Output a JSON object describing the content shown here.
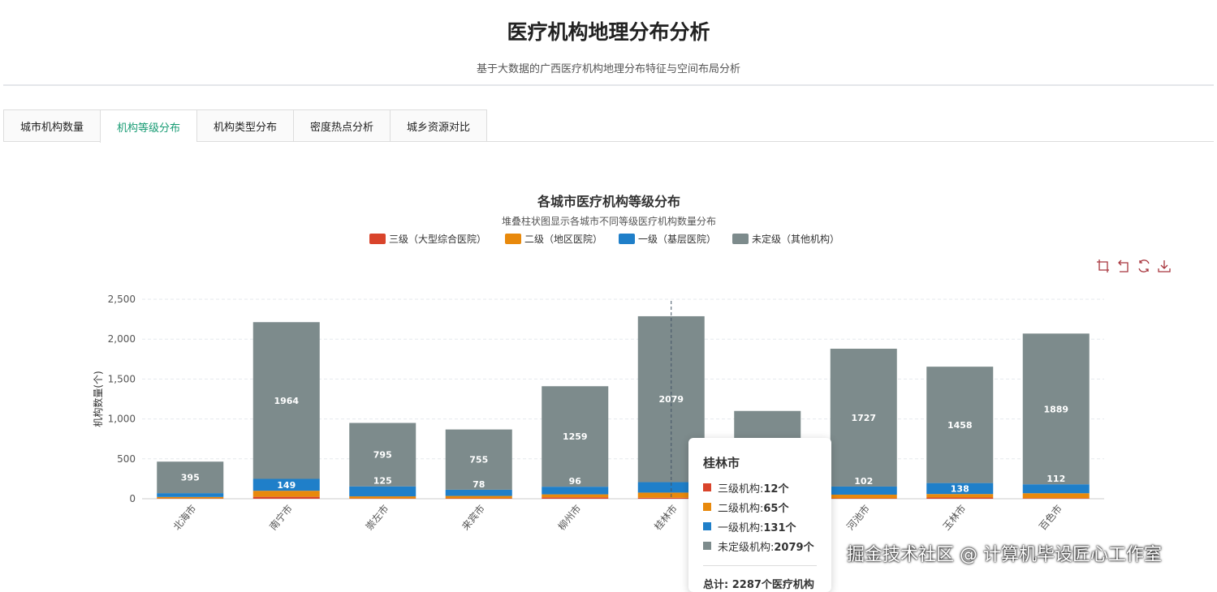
{
  "header": {
    "title": "医疗机构地理分布分析",
    "subtitle": "基于大数据的广西医疗机构地理分布特征与空间布局分析"
  },
  "tabs": [
    {
      "label": "城市机构数量"
    },
    {
      "label": "机构等级分布",
      "active": true
    },
    {
      "label": "机构类型分布"
    },
    {
      "label": "密度热点分析"
    },
    {
      "label": "城乡资源对比"
    }
  ],
  "toolbox": [
    "zoom-icon",
    "zoom-reset-icon",
    "restore-icon",
    "download-icon"
  ],
  "chart_data": {
    "type": "bar",
    "stacked": true,
    "title": "各城市医疗机构等级分布",
    "subtitle": "堆叠柱状图显示各城市不同等级医疗机构数量分布",
    "ylabel": "机构数量(个)",
    "ylim": [
      0,
      2500
    ],
    "yticks": [
      "0",
      "500",
      "1,000",
      "1,500",
      "2,000",
      "2,500"
    ],
    "grid": true,
    "legend_position": "top",
    "categories": [
      "北海市",
      "南宁市",
      "崇左市",
      "来宾市",
      "柳州市",
      "桂林市",
      "",
      "河池市",
      "玉林市",
      "百色市"
    ],
    "series": [
      {
        "name": "三级（大型综合医院）",
        "color": "#d9442b",
        "values": [
          4,
          24,
          4,
          5,
          17,
          12,
          8,
          5,
          15,
          7
        ]
      },
      {
        "name": "二级（地区医院）",
        "color": "#e8890c",
        "values": [
          18,
          76,
          26,
          30,
          38,
          65,
          40,
          46,
          44,
          62
        ]
      },
      {
        "name": "一级（基层医院）",
        "color": "#1f7fc9",
        "values": [
          48,
          149,
          125,
          78,
          96,
          131,
          100,
          102,
          138,
          112
        ]
      },
      {
        "name": "未定级（其他机构）",
        "color": "#7d8b8c",
        "values": [
          395,
          1964,
          795,
          755,
          1259,
          2079,
          952,
          1727,
          1458,
          1889
        ]
      }
    ]
  },
  "tooltip": {
    "city": "桂林市",
    "rows": [
      {
        "label": "三级机构: ",
        "value": "12个"
      },
      {
        "label": "二级机构: ",
        "value": "65个"
      },
      {
        "label": "一级机构: ",
        "value": "131个"
      },
      {
        "label": "未定级机构: ",
        "value": "2079个"
      }
    ],
    "total": "总计: 2287个医疗机构"
  },
  "watermark": "掘金技术社区 @ 计算机毕设匠心工作室"
}
